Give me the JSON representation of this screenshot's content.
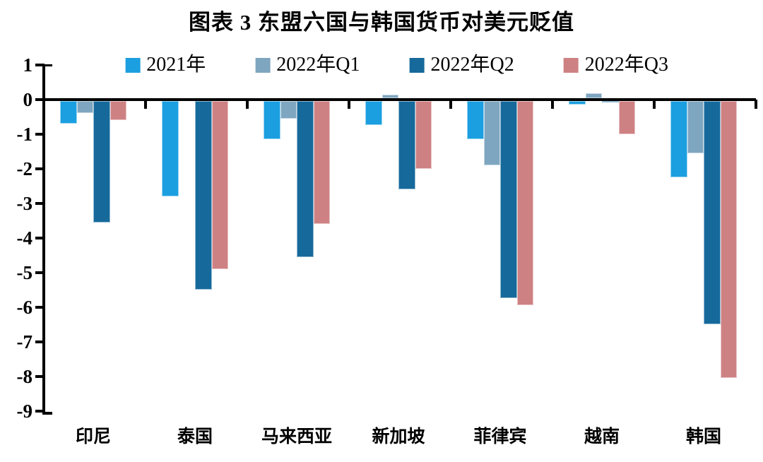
{
  "chart_data": {
    "type": "bar",
    "title": "图表 3 东盟六国与韩国货币对美元贬值",
    "categories": [
      "印尼",
      "泰国",
      "马来西亚",
      "新加坡",
      "菲律宾",
      "越南",
      "韩国"
    ],
    "series": [
      {
        "name": "2021年",
        "color": "#1B9FE0",
        "values": [
          -0.65,
          -2.75,
          -1.1,
          -0.7,
          -1.1,
          -0.1,
          -2.2
        ]
      },
      {
        "name": "2022年Q1",
        "color": "#7EA6C0",
        "values": [
          -0.35,
          0,
          -0.5,
          0.1,
          -1.85,
          0.15,
          -1.5
        ]
      },
      {
        "name": "2022年Q2",
        "color": "#16699B",
        "values": [
          -3.5,
          -5.45,
          -4.5,
          -2.55,
          -5.7,
          -0.05,
          -6.45
        ]
      },
      {
        "name": "2022年Q3",
        "color": "#CE8183",
        "values": [
          -0.55,
          -4.85,
          -3.55,
          -1.95,
          -5.9,
          -0.95,
          -8.0
        ]
      }
    ],
    "ylim": [
      -9,
      1
    ],
    "yticks": [
      1,
      0,
      -1,
      -2,
      -3,
      -4,
      -5,
      -6,
      -7,
      -8,
      -9
    ],
    "grid": false,
    "legend_position": "top",
    "axis_color": "#000000",
    "background_color": "#FFFFFF",
    "unit_note": "%"
  }
}
